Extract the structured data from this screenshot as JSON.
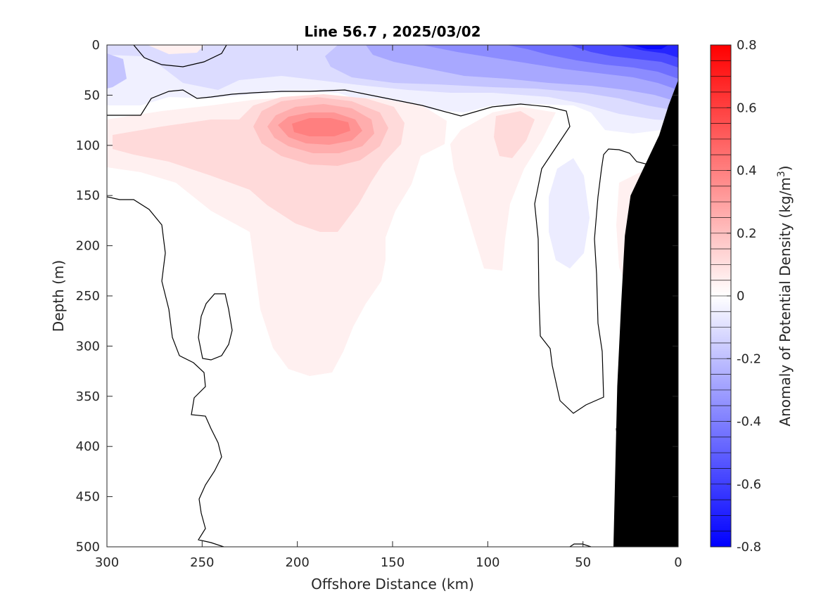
{
  "chart_data": {
    "type": "heatmap",
    "subtype": "filled contour section",
    "title": "Line 56.7 , 2025/03/02",
    "xlabel": "Offshore Distance (km)",
    "ylabel": "Depth (m)",
    "xlim": [
      300,
      0
    ],
    "ylim": [
      500,
      0
    ],
    "x_direction": "reversed",
    "y_direction": "depth increasing downward",
    "xticks": [
      "300",
      "250",
      "200",
      "150",
      "100",
      "50",
      "0"
    ],
    "xtick_values": [
      300,
      250,
      200,
      150,
      100,
      50,
      0
    ],
    "yticks": [
      "0",
      "50",
      "100",
      "150",
      "200",
      "250",
      "300",
      "350",
      "400",
      "450",
      "500"
    ],
    "ytick_values": [
      0,
      50,
      100,
      150,
      200,
      250,
      300,
      350,
      400,
      450,
      500
    ],
    "colorbar": {
      "label": "Anomaly of Potential Density (kg/m",
      "label_superscript": "3",
      "label_suffix": ")",
      "range": [
        -0.8,
        0.8
      ],
      "ticks": [
        "0.8",
        "0.6",
        "0.4",
        "0.2",
        "0",
        "-0.2",
        "-0.4",
        "-0.6",
        "-0.8"
      ],
      "tick_values": [
        0.8,
        0.6,
        0.4,
        0.2,
        0,
        -0.2,
        -0.4,
        -0.6,
        -0.8
      ],
      "levels_step": 0.05,
      "colormap": "blue-white-red",
      "low_color": "#0000ff",
      "mid_color": "#ffffff",
      "high_color": "#ff0000"
    },
    "features": [
      {
        "kind": "surface layer",
        "sign": "negative",
        "x_range": [
          300,
          0
        ],
        "depth_range": [
          0,
          60
        ],
        "approx_min": -0.75,
        "min_location": {
          "x": 18,
          "depth": 0
        }
      },
      {
        "kind": "subsurface core",
        "sign": "positive",
        "center": {
          "x": 185,
          "depth": 80
        },
        "approx_max": 0.35
      },
      {
        "kind": "positive tongue",
        "sign": "positive",
        "x_range": [
          215,
          160
        ],
        "depth_range": [
          60,
          330
        ],
        "approx_value": 0.05
      },
      {
        "kind": "positive patch",
        "sign": "positive",
        "center": {
          "x": 85,
          "depth": 100
        },
        "approx_max": 0.1
      },
      {
        "kind": "negative patch",
        "sign": "negative",
        "center": {
          "x": 48,
          "depth": 180
        },
        "approx_min": -0.05
      },
      {
        "kind": "positive patch",
        "sign": "positive",
        "center": {
          "x": 25,
          "depth": 200
        },
        "approx_max": 0.05
      }
    ],
    "zero_contour": true,
    "topography": {
      "color": "#000000",
      "depth_profile": [
        [
          0,
          35
        ],
        [
          5,
          60
        ],
        [
          10,
          90
        ],
        [
          20,
          130
        ],
        [
          25,
          150
        ],
        [
          28,
          190
        ],
        [
          30,
          260
        ],
        [
          32,
          340
        ],
        [
          33,
          420
        ],
        [
          34,
          500
        ]
      ]
    },
    "grid": false,
    "legend": "none"
  }
}
